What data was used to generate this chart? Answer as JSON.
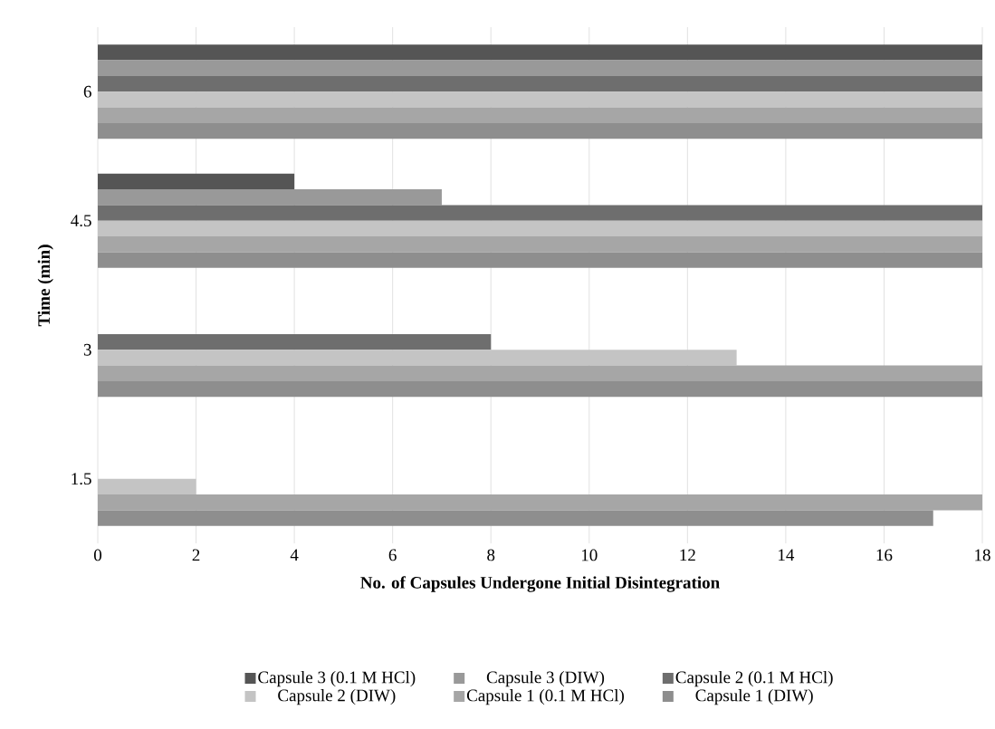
{
  "chart_data": {
    "type": "bar",
    "orientation": "horizontal",
    "xlabel": "No. of Capsules Undergone Initial Disintegration",
    "ylabel": "Time (min)",
    "categories": [
      "6",
      "4.5",
      "3",
      "1.5"
    ],
    "series": [
      {
        "name": "Capsule 3 (0.1 M HCl)",
        "color": "#555555",
        "values": [
          18,
          4,
          0,
          0
        ]
      },
      {
        "name": "Capsule 3 (DIW)",
        "color": "#999999",
        "values": [
          18,
          7,
          0,
          0
        ]
      },
      {
        "name": "Capsule 2 (0.1 M HCl)",
        "color": "#6e6e6e",
        "values": [
          18,
          18,
          8,
          0
        ]
      },
      {
        "name": "Capsule 2 (DIW)",
        "color": "#c4c4c4",
        "values": [
          18,
          18,
          13,
          2
        ]
      },
      {
        "name": "Capsule 1 (0.1 M HCl)",
        "color": "#a6a6a6",
        "values": [
          18,
          18,
          18,
          18
        ]
      },
      {
        "name": "Capsule 1 (DIW)",
        "color": "#8e8e8e",
        "values": [
          18,
          18,
          18,
          17
        ]
      }
    ],
    "xlim": [
      0,
      18
    ],
    "xticks": [
      0,
      2,
      4,
      6,
      8,
      10,
      12,
      14,
      16,
      18
    ],
    "grid": "x",
    "legend": "bottom"
  }
}
